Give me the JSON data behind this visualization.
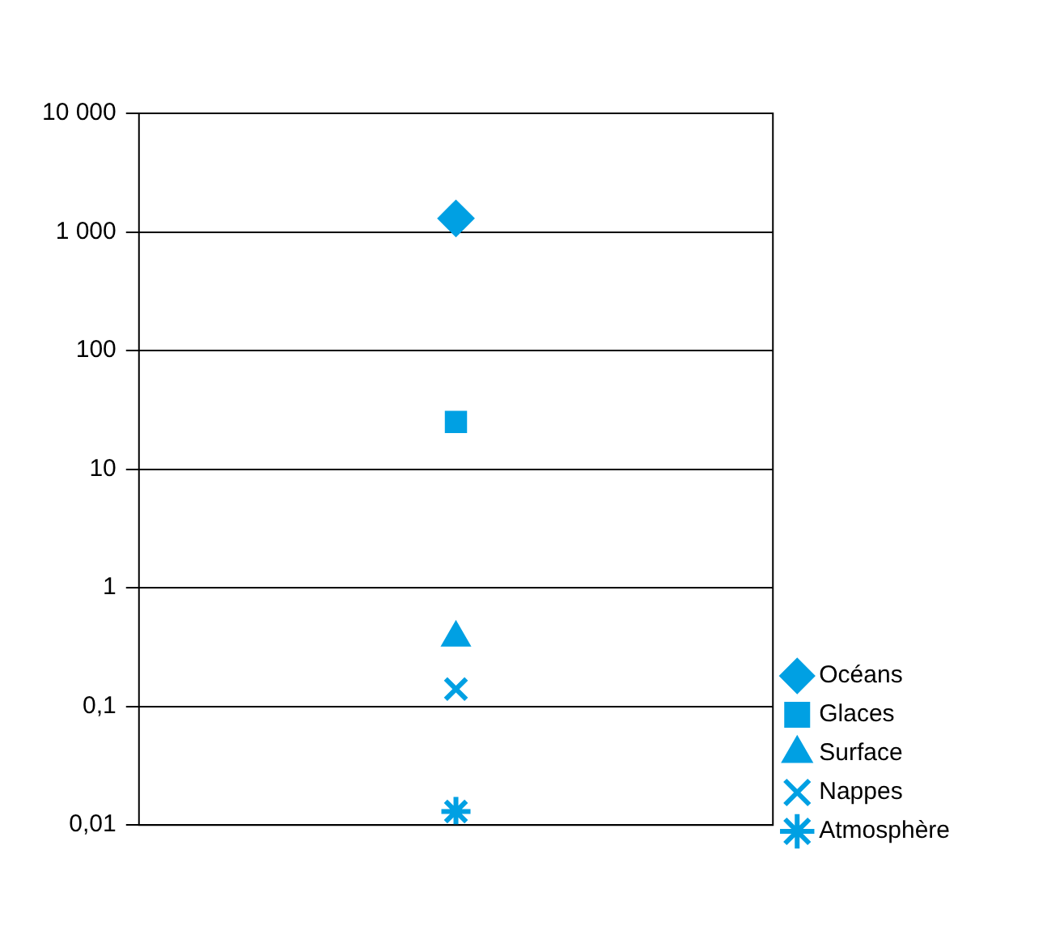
{
  "chart_data": {
    "type": "scatter",
    "categories": [
      null
    ],
    "log": "y",
    "grid": "y",
    "legend": "bottom right",
    "ylim": [
      0.01,
      10000
    ],
    "yticks": [
      {
        "value": 0.01,
        "label": "0,01"
      },
      {
        "value": 0.1,
        "label": "0,1"
      },
      1,
      10,
      100,
      {
        "value": 1000,
        "label": "1 000"
      },
      {
        "value": 10000,
        "label": "10 000"
      }
    ],
    "series": [
      {
        "name": "Océans",
        "color": "#00a0e3",
        "marker": "diamond",
        "values": [
          1300
        ]
      },
      {
        "name": "Glaces",
        "color": "#00a0e3",
        "marker": "square",
        "values": [
          25
        ]
      },
      {
        "name": "Surface",
        "color": "#00a0e3",
        "marker": "triangle",
        "values": [
          0.38
        ]
      },
      {
        "name": "Nappes",
        "color": "#00a0e3",
        "marker": "cross",
        "values": [
          0.14
        ]
      },
      {
        "name": "Atmosphère",
        "color": "#00a0e3",
        "values": [
          0.013
        ]
      }
    ]
  }
}
